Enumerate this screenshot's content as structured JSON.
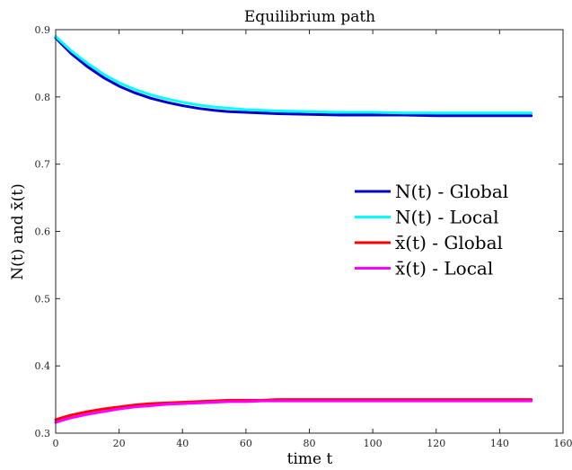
{
  "chart_data": {
    "type": "line",
    "title": "Equilibrium path",
    "xlabel": "time t",
    "ylabel": "N(t) and x̄(t)",
    "xlim": [
      0,
      160
    ],
    "ylim": [
      0.3,
      0.9
    ],
    "xticks": [
      "0",
      "20",
      "40",
      "60",
      "80",
      "100",
      "120",
      "140",
      "160"
    ],
    "yticks": [
      "0.3",
      "0.4",
      "0.5",
      "0.6",
      "0.7",
      "0.8",
      "0.9"
    ],
    "grid": false,
    "legend_position": "right-middle",
    "series": [
      {
        "name": "N(t) - Global",
        "color": "#0000cc",
        "x": [
          0,
          2,
          5,
          10,
          15,
          20,
          25,
          30,
          35,
          40,
          45,
          50,
          55,
          60,
          65,
          70,
          80,
          90,
          100,
          110,
          120,
          130,
          140,
          150
        ],
        "y": [
          0.888,
          0.878,
          0.864,
          0.845,
          0.829,
          0.816,
          0.806,
          0.798,
          0.792,
          0.787,
          0.783,
          0.78,
          0.778,
          0.777,
          0.776,
          0.775,
          0.774,
          0.773,
          0.773,
          0.773,
          0.772,
          0.772,
          0.772,
          0.772
        ]
      },
      {
        "name": "N(t) - Local",
        "color": "#00ffff",
        "x": [
          0,
          2,
          5,
          10,
          15,
          20,
          25,
          30,
          35,
          40,
          45,
          50,
          55,
          60,
          65,
          70,
          80,
          90,
          100,
          110,
          120,
          130,
          140,
          150
        ],
        "y": [
          0.89,
          0.881,
          0.868,
          0.85,
          0.834,
          0.821,
          0.811,
          0.803,
          0.797,
          0.792,
          0.788,
          0.785,
          0.783,
          0.781,
          0.78,
          0.779,
          0.778,
          0.777,
          0.777,
          0.776,
          0.776,
          0.776,
          0.776,
          0.776
        ]
      },
      {
        "name": "x̄(t) - Global",
        "color": "#ff0000",
        "x": [
          0,
          2,
          5,
          10,
          15,
          20,
          25,
          30,
          35,
          40,
          45,
          50,
          55,
          60,
          65,
          70,
          80,
          90,
          100,
          110,
          120,
          130,
          140,
          150
        ],
        "y": [
          0.32,
          0.323,
          0.327,
          0.332,
          0.336,
          0.339,
          0.342,
          0.344,
          0.345,
          0.346,
          0.347,
          0.348,
          0.349,
          0.349,
          0.349,
          0.35,
          0.35,
          0.35,
          0.35,
          0.35,
          0.35,
          0.35,
          0.35,
          0.35
        ]
      },
      {
        "name": "x̄(t) - Local",
        "color": "#ff00ff",
        "x": [
          0,
          2,
          5,
          10,
          15,
          20,
          25,
          30,
          35,
          40,
          45,
          50,
          55,
          60,
          65,
          70,
          80,
          90,
          100,
          110,
          120,
          130,
          140,
          150
        ],
        "y": [
          0.316,
          0.319,
          0.323,
          0.328,
          0.332,
          0.336,
          0.339,
          0.341,
          0.343,
          0.344,
          0.345,
          0.346,
          0.347,
          0.347,
          0.348,
          0.348,
          0.348,
          0.348,
          0.348,
          0.348,
          0.348,
          0.348,
          0.348,
          0.348
        ]
      }
    ]
  }
}
